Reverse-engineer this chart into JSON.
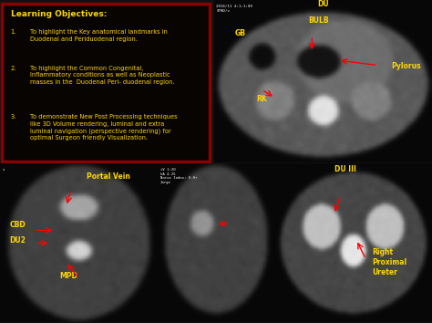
{
  "background_color": "#111111",
  "fig_width": 4.74,
  "fig_height": 3.54,
  "dpi": 100,
  "title_text": "Learning Objectives:",
  "title_color": "#FFD700",
  "title_fontsize": 6.5,
  "objectives": [
    "To highlight the Key anatomical landmarks in\nDuodenal and Periduodenal region.",
    "To highlight the Common Congenital,\nInflammatory conditions as well as Neoplastic\nmasses in the  Duodenal Peri- duodenal region.",
    "To demonstrate New Post Processing techniques\nlike 3D Volume rendering, luminal and extra\nluminal navigation (perspective rendering) for\noptimal Surgeon friendly Visualization."
  ],
  "objectives_color": "#FFD700",
  "objectives_fontsize": 4.8,
  "box_edge_color": "#8B0000",
  "box_face_color": "#080402",
  "top_right_label_color": "#FFD700",
  "bottom_left_label_color": "#FFD700",
  "bottom_center_label_color": "#FFD700",
  "bottom_right_label_color": "#FFD700"
}
